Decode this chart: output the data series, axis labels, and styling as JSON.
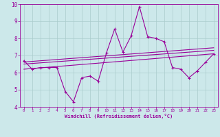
{
  "xlabel": "Windchill (Refroidissement éolien,°C)",
  "xlim": [
    -0.5,
    23.5
  ],
  "ylim": [
    4,
    10
  ],
  "xticks": [
    0,
    1,
    2,
    3,
    4,
    5,
    6,
    7,
    8,
    9,
    10,
    11,
    12,
    13,
    14,
    15,
    16,
    17,
    18,
    19,
    20,
    21,
    22,
    23
  ],
  "yticks": [
    4,
    5,
    6,
    7,
    8,
    9,
    10
  ],
  "bg_color": "#cce8ea",
  "line_color": "#990099",
  "grid_color": "#aacccc",
  "line1_x": [
    0,
    1,
    2,
    3,
    4,
    5,
    6,
    7,
    8,
    9,
    10,
    11,
    12,
    13,
    14,
    15,
    16,
    17,
    18,
    19,
    20,
    21,
    22,
    23
  ],
  "line1_y": [
    6.7,
    6.2,
    6.3,
    6.3,
    6.3,
    4.9,
    4.3,
    5.7,
    5.8,
    5.5,
    7.15,
    8.55,
    7.2,
    8.15,
    9.85,
    8.1,
    8.0,
    7.8,
    6.3,
    6.2,
    5.7,
    6.1,
    6.6,
    7.1
  ],
  "line2_x": [
    0,
    23
  ],
  "line2_y": [
    6.2,
    7.1
  ],
  "line3_x": [
    0,
    23
  ],
  "line3_y": [
    6.5,
    7.3
  ],
  "line4_x": [
    0,
    23
  ],
  "line4_y": [
    6.62,
    7.45
  ]
}
